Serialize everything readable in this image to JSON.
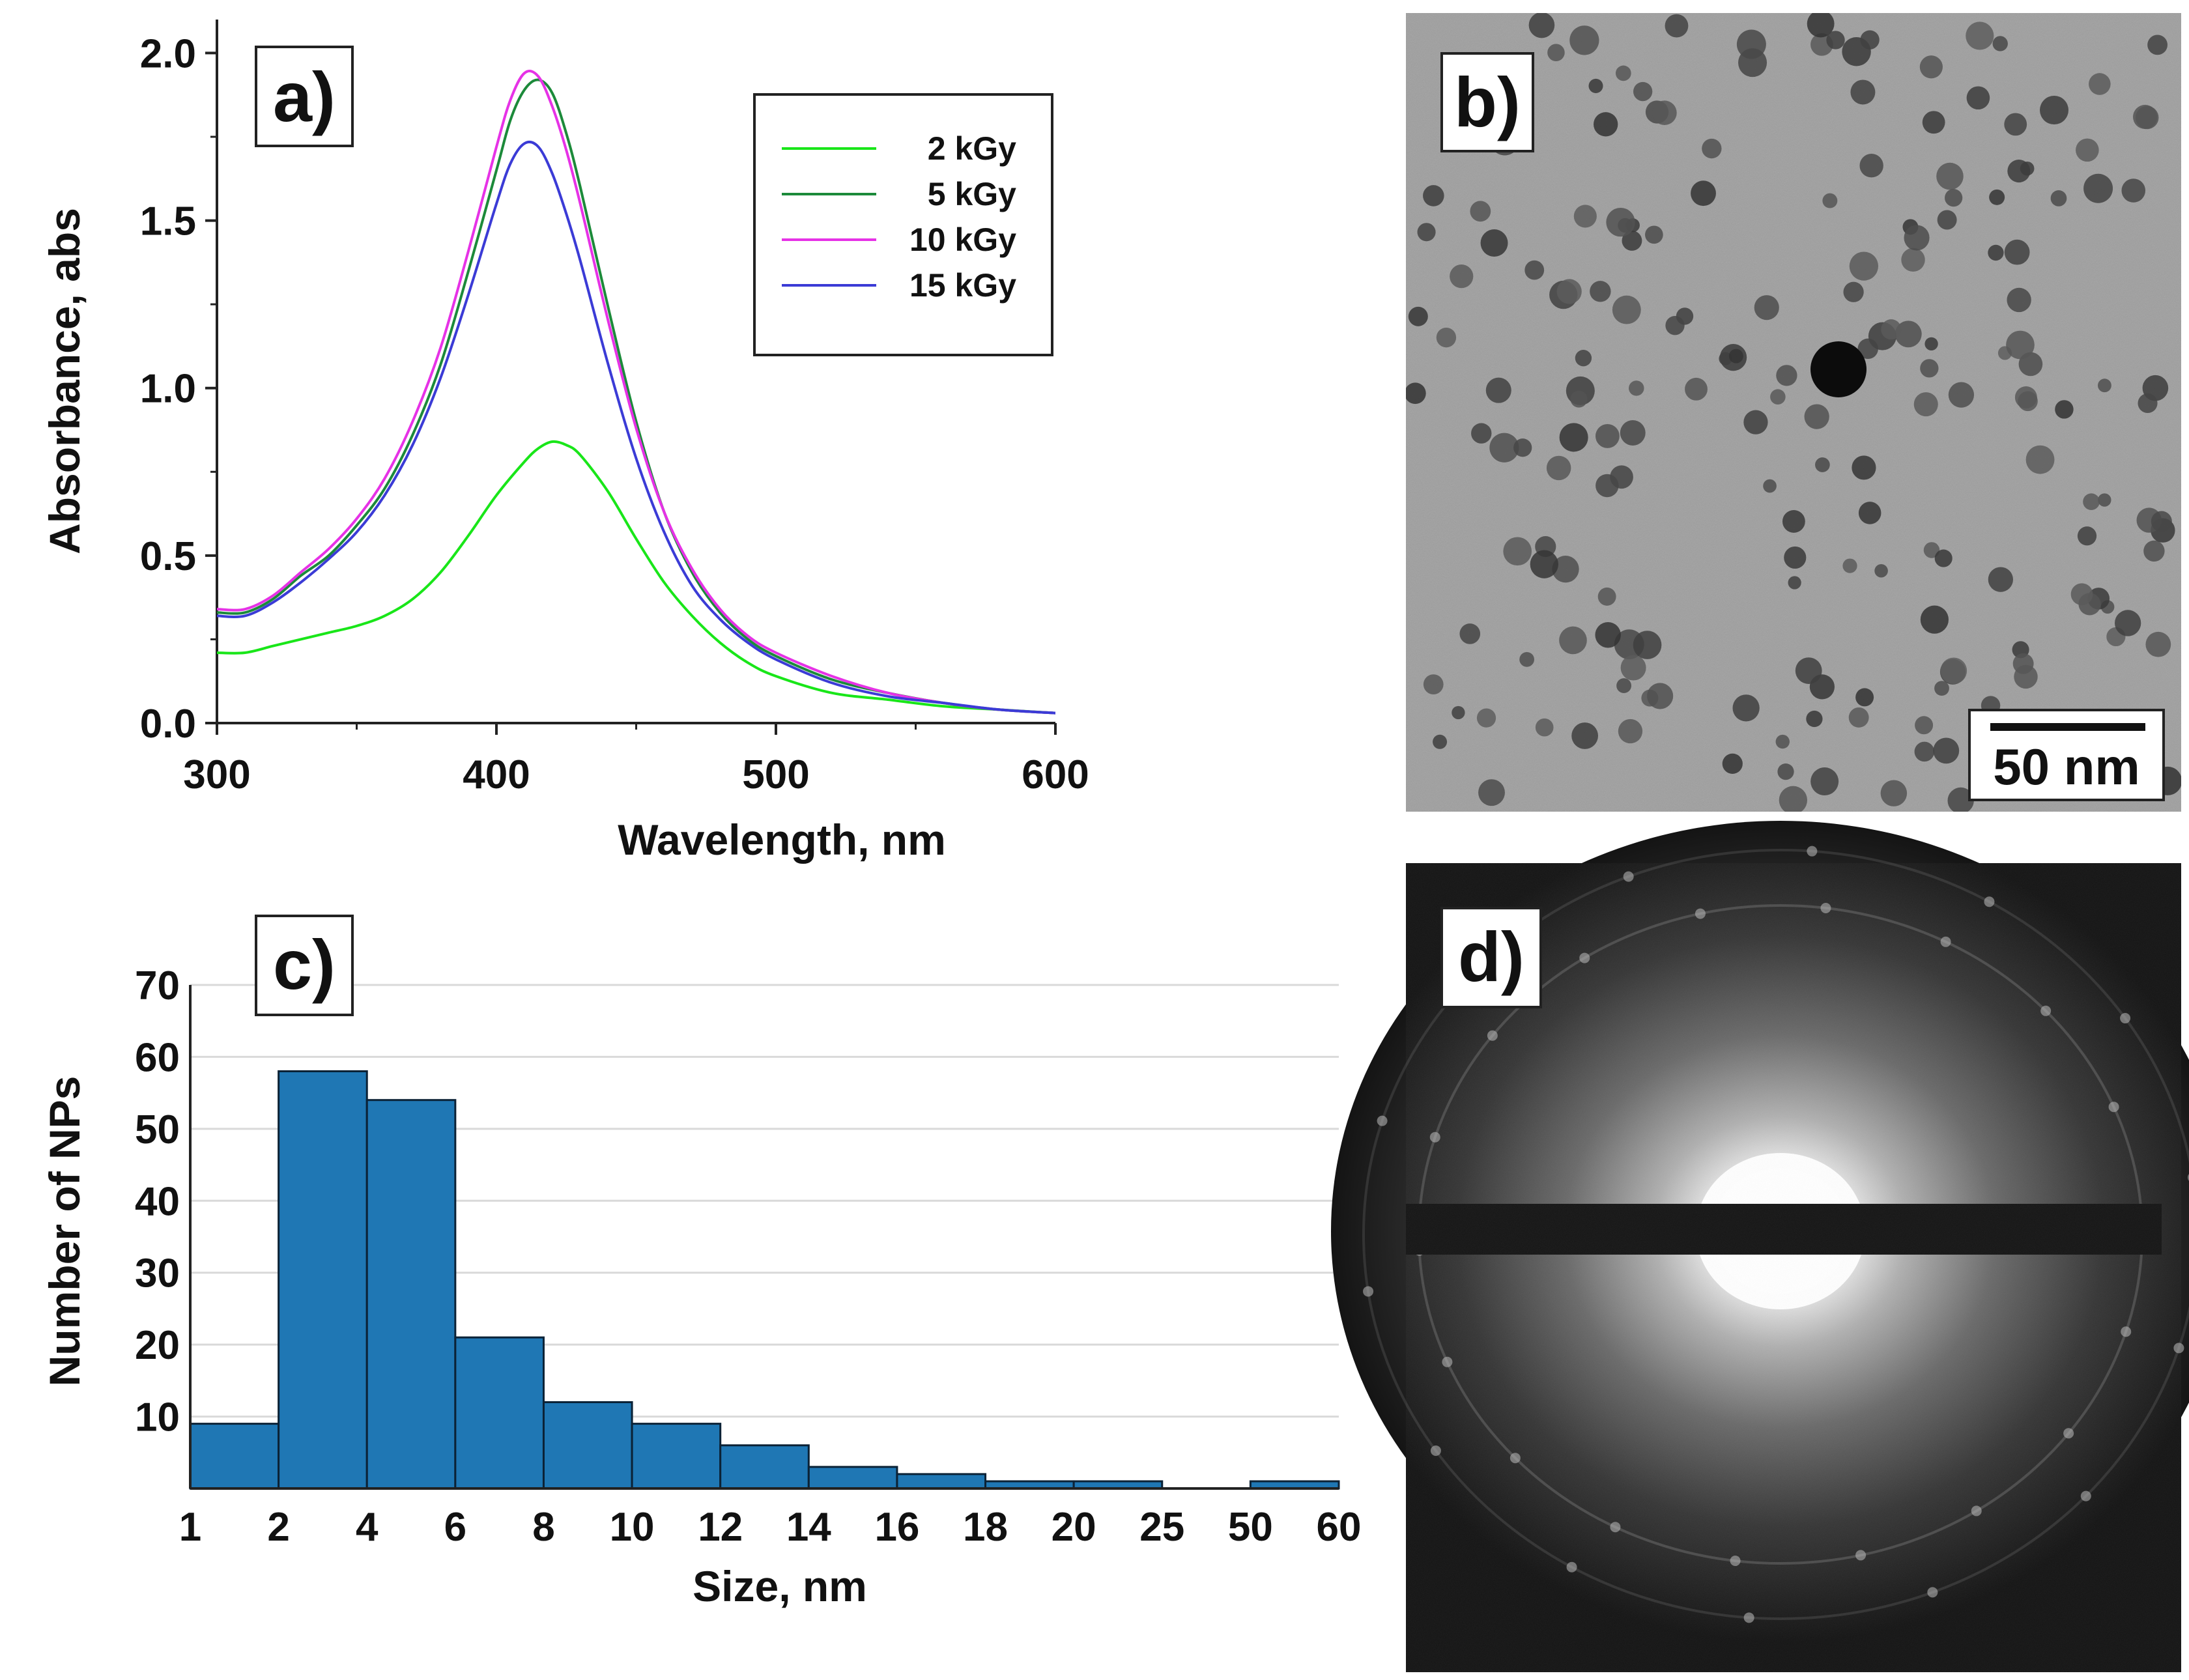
{
  "panels": {
    "a": "a)",
    "b": "b)",
    "c": "c)",
    "d": "d)"
  },
  "scale_bar_label": "50 nm",
  "chart_data": [
    {
      "panel": "a)",
      "type": "line",
      "xlabel": "Wavelength, nm",
      "ylabel": "Absorbance, abs",
      "xlim": [
        300,
        600
      ],
      "ylim": [
        0,
        2.1
      ],
      "xticks": [
        300,
        400,
        500,
        600
      ],
      "yticks": [
        0,
        0.5,
        1.0,
        1.5,
        2.0
      ],
      "xtick_labels": [
        "300",
        "400",
        "500",
        "600"
      ],
      "ytick_labels": [
        "0.0",
        "0.5",
        "1.0",
        "1.5",
        "2.0"
      ],
      "legend_position": "top-right",
      "series": [
        {
          "name": "2 kGy",
          "color": "#19e619",
          "x": [
            300,
            310,
            320,
            330,
            340,
            350,
            360,
            370,
            380,
            390,
            400,
            410,
            415,
            420,
            425,
            430,
            440,
            450,
            460,
            470,
            480,
            490,
            500,
            520,
            540,
            560,
            580,
            600
          ],
          "y": [
            0.21,
            0.21,
            0.23,
            0.25,
            0.27,
            0.29,
            0.32,
            0.37,
            0.45,
            0.56,
            0.68,
            0.78,
            0.82,
            0.84,
            0.83,
            0.8,
            0.69,
            0.55,
            0.42,
            0.32,
            0.24,
            0.18,
            0.14,
            0.09,
            0.07,
            0.05,
            0.04,
            0.03
          ]
        },
        {
          "name": "5 kGy",
          "color": "#1c8a3a",
          "x": [
            300,
            310,
            320,
            330,
            340,
            350,
            360,
            370,
            380,
            390,
            400,
            405,
            410,
            415,
            420,
            425,
            430,
            440,
            450,
            460,
            470,
            480,
            490,
            500,
            520,
            540,
            560,
            580,
            600
          ],
          "y": [
            0.33,
            0.33,
            0.37,
            0.44,
            0.5,
            0.59,
            0.7,
            0.86,
            1.07,
            1.35,
            1.65,
            1.8,
            1.89,
            1.92,
            1.88,
            1.76,
            1.6,
            1.24,
            0.9,
            0.63,
            0.45,
            0.33,
            0.25,
            0.2,
            0.13,
            0.09,
            0.06,
            0.04,
            0.03
          ]
        },
        {
          "name": "10 kGy",
          "color": "#e632e6",
          "x": [
            300,
            310,
            320,
            330,
            340,
            350,
            360,
            370,
            380,
            390,
            400,
            405,
            410,
            415,
            420,
            425,
            430,
            440,
            450,
            460,
            470,
            480,
            490,
            500,
            520,
            540,
            560,
            580,
            600
          ],
          "y": [
            0.34,
            0.34,
            0.38,
            0.45,
            0.52,
            0.61,
            0.73,
            0.9,
            1.12,
            1.41,
            1.72,
            1.86,
            1.94,
            1.93,
            1.84,
            1.71,
            1.55,
            1.2,
            0.88,
            0.63,
            0.46,
            0.34,
            0.26,
            0.21,
            0.14,
            0.09,
            0.06,
            0.04,
            0.03
          ]
        },
        {
          "name": "15 kGy",
          "color": "#3b3bd6",
          "x": [
            300,
            310,
            320,
            330,
            340,
            350,
            360,
            370,
            380,
            390,
            400,
            405,
            410,
            415,
            420,
            425,
            430,
            440,
            450,
            460,
            470,
            480,
            490,
            500,
            520,
            540,
            560,
            580,
            600
          ],
          "y": [
            0.32,
            0.32,
            0.36,
            0.42,
            0.49,
            0.57,
            0.68,
            0.83,
            1.03,
            1.28,
            1.55,
            1.67,
            1.73,
            1.72,
            1.64,
            1.52,
            1.38,
            1.07,
            0.79,
            0.57,
            0.41,
            0.31,
            0.24,
            0.19,
            0.12,
            0.08,
            0.06,
            0.04,
            0.03
          ]
        }
      ]
    },
    {
      "panel": "c)",
      "type": "bar",
      "xlabel": "Size, nm",
      "ylabel": "Number of NPs",
      "ylim": [
        0,
        70
      ],
      "yticks": [
        10,
        20,
        30,
        40,
        50,
        60,
        70
      ],
      "ytick_labels": [
        "10",
        "20",
        "30",
        "40",
        "50",
        "60",
        "70"
      ],
      "bin_edges": [
        "1",
        "2",
        "4",
        "6",
        "8",
        "10",
        "12",
        "14",
        "16",
        "18",
        "20",
        "25",
        "50",
        "60"
      ],
      "values": [
        9,
        58,
        54,
        21,
        12,
        9,
        6,
        3,
        2,
        1,
        1,
        0,
        1
      ],
      "bar_color": "#1f77b4",
      "grid": true
    }
  ]
}
